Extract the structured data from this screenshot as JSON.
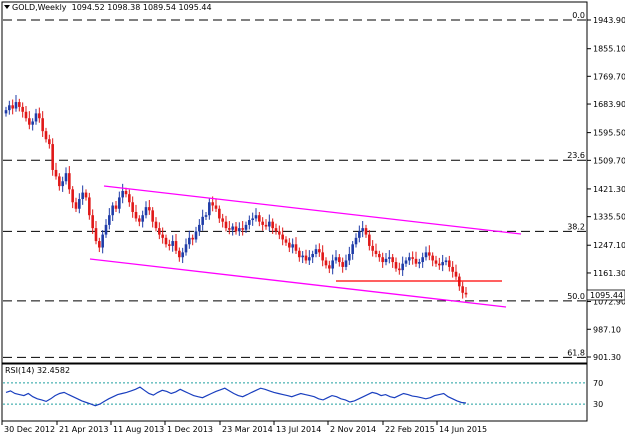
{
  "header": {
    "symbol_timeframe": "GOLD,Weekly",
    "ohlc": "1094.52 1098.38 1089.54 1095.44"
  },
  "price_axis": {
    "labels": [
      "1943.90",
      "1855.10",
      "1769.70",
      "1683.90",
      "1595.50",
      "1509.70",
      "1421.30",
      "1335.50",
      "1247.10",
      "1161.30",
      "1072.90",
      "987.10",
      "901.30"
    ]
  },
  "fib_levels": [
    {
      "label": "0.0",
      "price": 1943.9
    },
    {
      "label": "23.6",
      "price": 1510.0
    },
    {
      "label": "38.2",
      "price": 1290.0
    },
    {
      "label": "50.0",
      "price": 1075.0
    },
    {
      "label": "61.8",
      "price": 900.0
    }
  ],
  "last_price_tag": "1095.44",
  "time_axis": {
    "labels": [
      "30 Dec 2012",
      "21 Apr 2013",
      "11 Aug 2013",
      "1 Dec 2013",
      "23 Mar 2014",
      "13 Jul 2014",
      "2 Nov 2014",
      "22 Feb 2015",
      "14 Jun 2015"
    ]
  },
  "rsi": {
    "label": "RSI(14) 32.4582",
    "levels": [
      "70",
      "30"
    ],
    "values": [
      52,
      55,
      50,
      48,
      46,
      50,
      44,
      40,
      38,
      35,
      40,
      46,
      50,
      52,
      48,
      44,
      40,
      36,
      33,
      30,
      27,
      30,
      35,
      40,
      44,
      48,
      50,
      52,
      55,
      58,
      62,
      56,
      50,
      47,
      52,
      56,
      54,
      50,
      53,
      58,
      54,
      50,
      46,
      44,
      42,
      46,
      50,
      54,
      57,
      60,
      55,
      50,
      46,
      44,
      48,
      52,
      56,
      60,
      58,
      55,
      52,
      50,
      48,
      46,
      44,
      47,
      50,
      48,
      46,
      44,
      40,
      38,
      42,
      46,
      44,
      40,
      38,
      34,
      36,
      40,
      44,
      48,
      52,
      50,
      46,
      48,
      44,
      42,
      46,
      50,
      48,
      45,
      44,
      42,
      40,
      42,
      46,
      48,
      50,
      44,
      40,
      36,
      33,
      32
    ]
  },
  "colors": {
    "channel": "#ff00ff",
    "support_line": "#ff0000",
    "bull_candle": "#1f3ca8",
    "bear_candle": "#e01818",
    "rsi_line": "#1a3fbf",
    "rsi_level": "#20a0a0"
  }
}
